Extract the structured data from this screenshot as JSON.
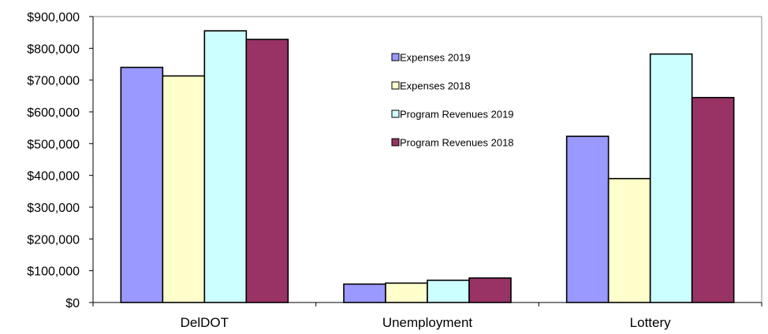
{
  "chart_data": {
    "type": "bar",
    "title": "",
    "xlabel": "",
    "ylabel": "",
    "ylim": [
      0,
      900000
    ],
    "yticks": [
      0,
      100000,
      200000,
      300000,
      400000,
      500000,
      600000,
      700000,
      800000,
      900000
    ],
    "ytick_labels": [
      "$0",
      "$100,000",
      "$200,000",
      "$300,000",
      "$400,000",
      "$500,000",
      "$600,000",
      "$700,000",
      "$800,000",
      "$900,000"
    ],
    "grid": false,
    "legend_position": "top-center",
    "categories": [
      "DelDOT",
      "Unemployment",
      "Lottery"
    ],
    "series": [
      {
        "name": "Expenses 2019",
        "color": "#9999ff",
        "values": [
          740000,
          58000,
          523000
        ]
      },
      {
        "name": "Expenses 2018",
        "color": "#ffffcc",
        "values": [
          713000,
          61000,
          390000
        ]
      },
      {
        "name": "Program Revenues 2019",
        "color": "#ccffff",
        "values": [
          855000,
          70000,
          782000
        ]
      },
      {
        "name": "Program Revenues 2018",
        "color": "#993366",
        "values": [
          828000,
          77000,
          645000
        ]
      }
    ]
  }
}
